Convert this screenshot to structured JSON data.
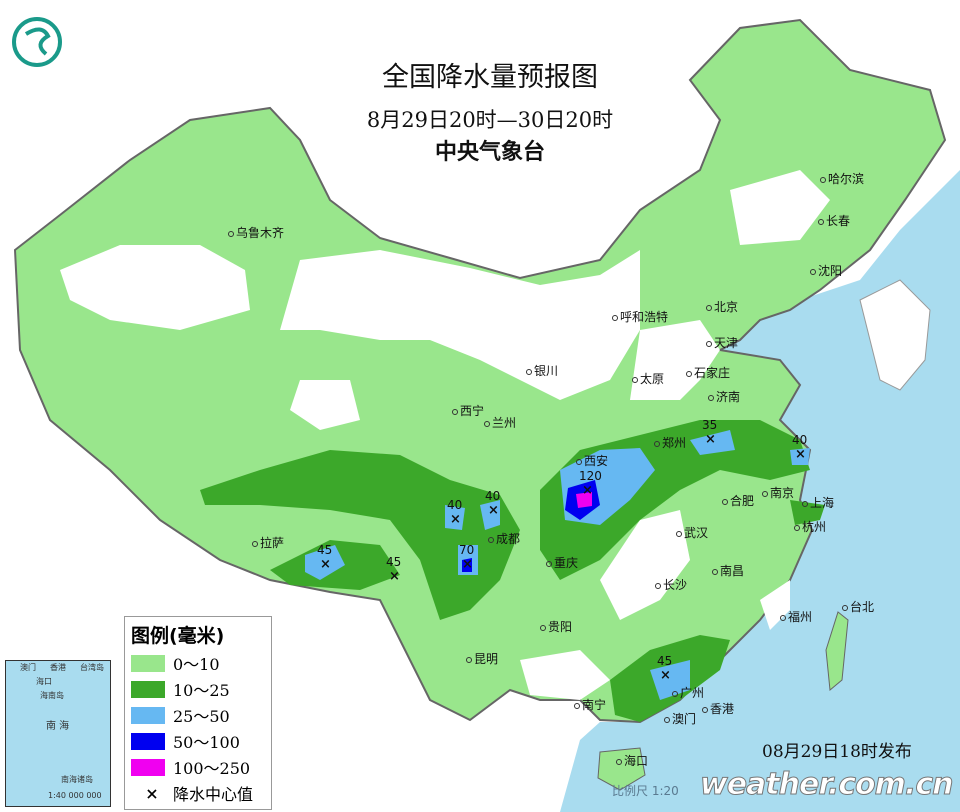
{
  "title": "全国降水量预报图",
  "period": "8月29日20时—30日20时",
  "issuer": "中央气象台",
  "issued_at": "08月29日18时发布",
  "watermark": "weather.com.cn",
  "scale_text": "比例尺 1:20",
  "legend": {
    "title": "图例(毫米)",
    "items": [
      {
        "label": "0～10",
        "color": "#99e68c"
      },
      {
        "label": "10～25",
        "color": "#3ca82a"
      },
      {
        "label": "25～50",
        "color": "#66b8f2"
      },
      {
        "label": "50～100",
        "color": "#0000f0"
      },
      {
        "label": "100～250",
        "color": "#f000f0"
      }
    ],
    "center_symbol": "×",
    "center_label": "降水中心值"
  },
  "inset": {
    "labels": [
      "澳门",
      "香港",
      "台湾岛",
      "海口",
      "海南岛",
      "南 海",
      "南海诸岛",
      "1:40 000 000"
    ]
  },
  "cities": [
    "乌鲁木齐",
    "哈尔滨",
    "长春",
    "沈阳",
    "北京",
    "天津",
    "呼和浩特",
    "银川",
    "太原",
    "石家庄",
    "济南",
    "西宁",
    "兰州",
    "郑州",
    "西安",
    "合肥",
    "南京",
    "上海",
    "杭州",
    "武汉",
    "成都",
    "重庆",
    "长沙",
    "南昌",
    "拉萨",
    "贵阳",
    "福州",
    "台北",
    "昆明",
    "南宁",
    "广州",
    "香港",
    "澳门",
    "海口"
  ],
  "rain_centers": [
    "120",
    "35",
    "40",
    "40",
    "40",
    "70",
    "45",
    "45",
    "45"
  ]
}
